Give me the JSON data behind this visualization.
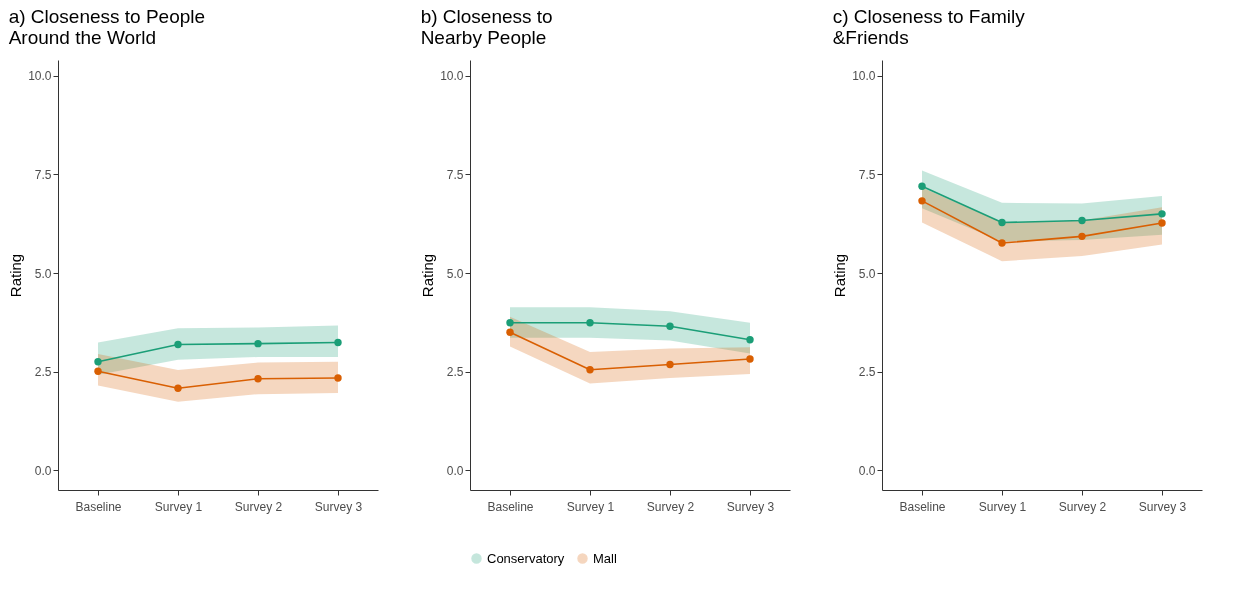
{
  "chart_data": [
    {
      "type": "line",
      "title": "a) Closeness to People\n Around the World",
      "ylabel": "Rating",
      "categories": [
        "Baseline",
        "Survey 1",
        "Survey 2",
        "Survey 3"
      ],
      "ylim": [
        -0.5,
        10.4
      ],
      "yticks": [
        {
          "value": 0,
          "label": "0.0"
        },
        {
          "value": 2.5,
          "label": "2.5"
        },
        {
          "value": 5,
          "label": "5.0"
        },
        {
          "value": 7.5,
          "label": "7.5"
        },
        {
          "value": 10,
          "label": "10.0"
        }
      ],
      "grid": false,
      "marker": "circle",
      "series": [
        {
          "color": "#1b9e77",
          "values": [
            2.75,
            3.19,
            3.21,
            3.24
          ],
          "lower": [
            2.42,
            2.8,
            2.87,
            2.87
          ],
          "upper": [
            3.24,
            3.6,
            3.62,
            3.67
          ]
        },
        {
          "color": "#d95f02",
          "values": [
            2.51,
            2.08,
            2.32,
            2.34
          ],
          "lower": [
            2.15,
            1.74,
            1.93,
            1.96
          ],
          "upper": [
            2.95,
            2.54,
            2.73,
            2.75
          ]
        }
      ]
    },
    {
      "type": "line",
      "title": "b) Closeness to\nNearby People",
      "ylabel": "Rating",
      "categories": [
        "Baseline",
        "Survey 1",
        "Survey 2",
        "Survey 3"
      ],
      "ylim": [
        -0.5,
        10.4
      ],
      "yticks": [
        {
          "value": 0,
          "label": "0.0"
        },
        {
          "value": 2.5,
          "label": "2.5"
        },
        {
          "value": 5,
          "label": "5.0"
        },
        {
          "value": 7.5,
          "label": "7.5"
        },
        {
          "value": 10,
          "label": "10.0"
        }
      ],
      "grid": false,
      "marker": "circle",
      "legend": "bottom",
      "series": [
        {
          "name": "Conservatory",
          "color": "#1b9e77",
          "values": [
            3.74,
            3.74,
            3.65,
            3.31
          ],
          "lower": [
            3.36,
            3.36,
            3.29,
            2.96
          ],
          "upper": [
            4.13,
            4.13,
            4.03,
            3.74
          ]
        },
        {
          "name": "Mall",
          "color": "#d95f02",
          "values": [
            3.5,
            2.55,
            2.68,
            2.82
          ],
          "lower": [
            3.14,
            2.2,
            2.34,
            2.44
          ],
          "upper": [
            3.89,
            3.0,
            3.09,
            3.12
          ]
        }
      ]
    },
    {
      "type": "line",
      "title": "c) Closeness to Family\n&Friends",
      "ylabel": "Rating",
      "categories": [
        "Baseline",
        "Survey 1",
        "Survey 2",
        "Survey 3"
      ],
      "ylim": [
        -0.5,
        10.4
      ],
      "yticks": [
        {
          "value": 0,
          "label": "0.0"
        },
        {
          "value": 2.5,
          "label": "2.5"
        },
        {
          "value": 5,
          "label": "5.0"
        },
        {
          "value": 7.5,
          "label": "7.5"
        },
        {
          "value": 10,
          "label": "10.0"
        }
      ],
      "grid": false,
      "marker": "circle",
      "series": [
        {
          "color": "#1b9e77",
          "values": [
            7.2,
            6.28,
            6.33,
            6.5
          ],
          "lower": [
            6.64,
            5.8,
            5.84,
            5.97
          ],
          "upper": [
            7.6,
            6.78,
            6.76,
            6.95
          ]
        },
        {
          "color": "#d95f02",
          "values": [
            6.83,
            5.76,
            5.93,
            6.27
          ],
          "lower": [
            6.28,
            5.3,
            5.43,
            5.72
          ],
          "upper": [
            7.17,
            6.28,
            6.33,
            6.67
          ]
        }
      ]
    }
  ]
}
